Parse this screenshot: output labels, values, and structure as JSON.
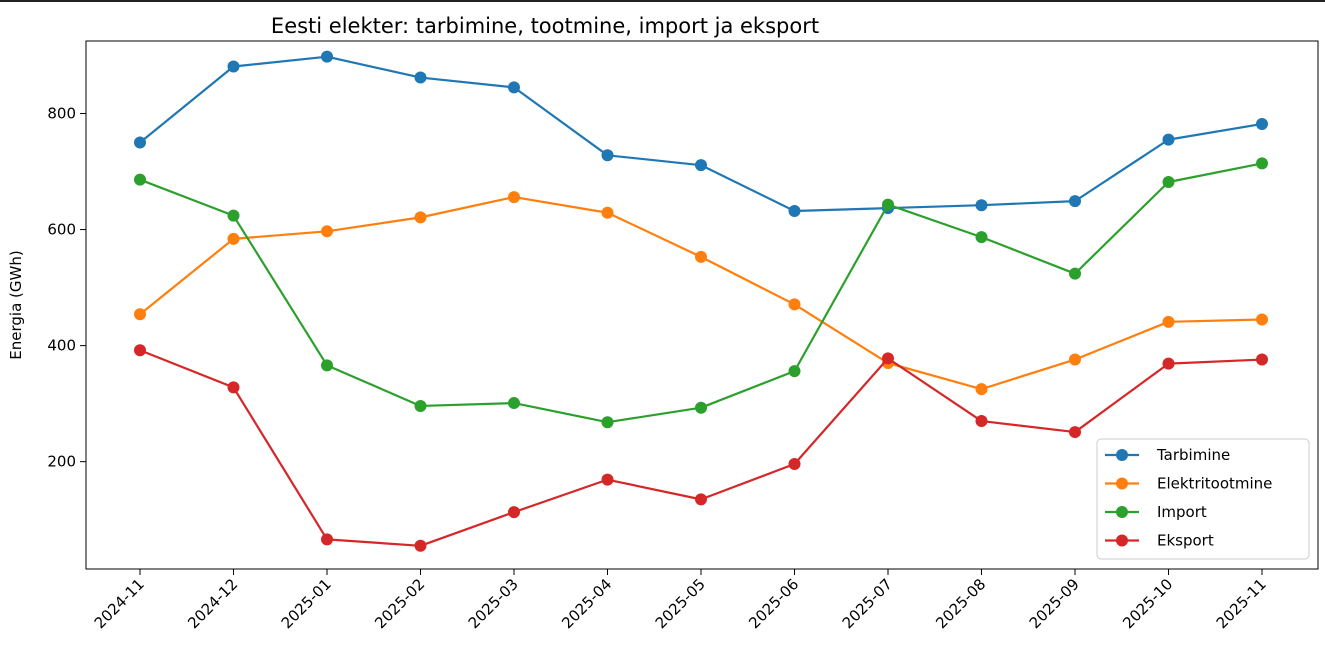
{
  "chart_data": {
    "type": "line",
    "title": "Eesti elekter: tarbimine, tootmine, import ja eksport",
    "xlabel": "",
    "ylabel": "Energia (GWh)",
    "ylim": [
      15,
      925
    ],
    "yticks": [
      200,
      400,
      600,
      800
    ],
    "categories": [
      "2024-11",
      "2024-12",
      "2025-01",
      "2025-02",
      "2025-03",
      "2025-04",
      "2025-05",
      "2025-06",
      "2025-07",
      "2025-08",
      "2025-09",
      "2025-10",
      "2025-11"
    ],
    "grid": false,
    "legend_position": "lower-right",
    "series": [
      {
        "name": "Tarbimine",
        "color": "#1f77b4",
        "values": [
          750,
          881,
          898,
          862,
          845,
          728,
          711,
          632,
          637,
          642,
          649,
          755,
          782
        ]
      },
      {
        "name": "Elektritootmine",
        "color": "#ff7f0e",
        "values": [
          454,
          584,
          597,
          621,
          656,
          629,
          553,
          471,
          370,
          325,
          376,
          441,
          445
        ]
      },
      {
        "name": "Import",
        "color": "#2ca02c",
        "values": [
          686,
          624,
          366,
          296,
          301,
          268,
          293,
          356,
          643,
          587,
          524,
          682,
          714
        ]
      },
      {
        "name": "Eksport",
        "color": "#d62728",
        "values": [
          392,
          328,
          66,
          55,
          113,
          169,
          135,
          196,
          378,
          270,
          251,
          369,
          376
        ]
      }
    ]
  }
}
